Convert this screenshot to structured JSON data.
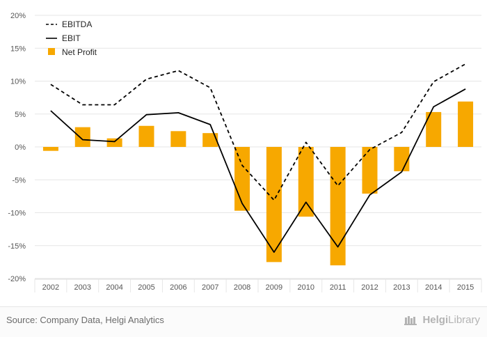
{
  "chart_data": {
    "type": "bar",
    "categories": [
      "2002",
      "2003",
      "2004",
      "2005",
      "2006",
      "2007",
      "2008",
      "2009",
      "2010",
      "2011",
      "2012",
      "2013",
      "2014",
      "2015"
    ],
    "y_ticks": [
      "20%",
      "15%",
      "10%",
      "5%",
      "0%",
      "-5%",
      "-10%",
      "-15%",
      "-20%"
    ],
    "ylim": [
      -20,
      20
    ],
    "grid": true,
    "legend_position": "top-left",
    "series": [
      {
        "name": "EBITDA",
        "type": "line",
        "style": "dashed",
        "color": "#000000",
        "values": [
          9.5,
          6.4,
          6.4,
          10.3,
          11.6,
          9.0,
          -2.8,
          -8.1,
          0.7,
          -5.9,
          -0.4,
          2.2,
          9.9,
          12.6
        ]
      },
      {
        "name": "EBIT",
        "type": "line",
        "style": "solid",
        "color": "#000000",
        "values": [
          5.5,
          1.1,
          0.8,
          4.9,
          5.2,
          3.4,
          -8.6,
          -16.0,
          -8.4,
          -15.2,
          -7.3,
          -3.8,
          6.1,
          8.8
        ]
      },
      {
        "name": "Net Profit",
        "type": "bar",
        "color": "#f7a800",
        "values": [
          -0.6,
          3.0,
          1.3,
          3.2,
          2.4,
          2.1,
          -9.7,
          -17.5,
          -10.6,
          -18.0,
          -7.1,
          -3.7,
          5.3,
          6.9
        ]
      }
    ]
  },
  "footer": {
    "source": "Source: Company Data, Helgi Analytics",
    "brand_prefix": "Helgi",
    "brand_suffix": "Library"
  },
  "colors": {
    "bar": "#f7a800",
    "grid": "#e6e6e6",
    "axis_text": "#555555"
  }
}
